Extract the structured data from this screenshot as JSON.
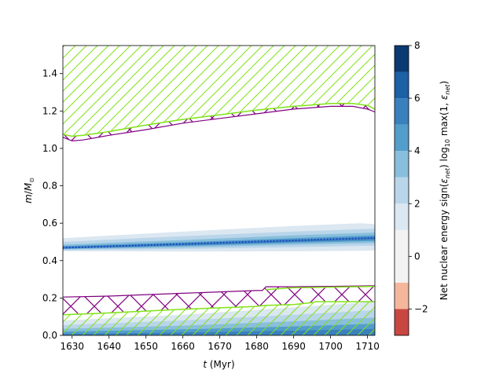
{
  "chart_data": {
    "type": "heatmap",
    "title": "",
    "xlabel_var": "t",
    "xlabel_unit": " (Myr)",
    "ylabel_var": "m",
    "ylabel_sep": "/",
    "ylabel_M": "M",
    "ylabel_sub": "⊙",
    "xlim": [
      1627.5,
      1712
    ],
    "ylim": [
      0.0,
      1.55
    ],
    "x_ticks": [
      1630,
      1640,
      1650,
      1660,
      1670,
      1680,
      1690,
      1700,
      1710
    ],
    "x_tick_labels": [
      "1630",
      "1640",
      "1650",
      "1660",
      "1670",
      "1680",
      "1690",
      "1700",
      "1710"
    ],
    "y_ticks": [
      0.0,
      0.2,
      0.4,
      0.6,
      0.8,
      1.0,
      1.2,
      1.4
    ],
    "y_tick_labels": [
      "0.0",
      "0.2",
      "0.4",
      "0.6",
      "0.8",
      "1.0",
      "1.2",
      "1.4"
    ],
    "colorbar": {
      "label_part1": "Net nuclear energy sign(",
      "label_eps": "ε",
      "label_net": "net",
      "label_part2": ") log",
      "label_10": "10",
      "label_part3": " max(1, ",
      "label_part4": ")",
      "range": [
        -3,
        8
      ],
      "ticks": [
        -2,
        0,
        2,
        4,
        6,
        8
      ],
      "tick_labels": [
        "−2",
        "0",
        "2",
        "4",
        "6",
        "8"
      ],
      "levels": [
        {
          "from": -3,
          "to": -2,
          "color": "#c94741"
        },
        {
          "from": -2,
          "to": -1,
          "color": "#f5b79c"
        },
        {
          "from": -1,
          "to": 1,
          "color": "#f2f2f2"
        },
        {
          "from": 1,
          "to": 2,
          "color": "#dbe7f1"
        },
        {
          "from": 2,
          "to": 3,
          "color": "#b9d5ea"
        },
        {
          "from": 3,
          "to": 4,
          "color": "#89bedc"
        },
        {
          "from": 4,
          "to": 5,
          "color": "#539dcb"
        },
        {
          "from": 5,
          "to": 6,
          "color": "#3a80bd"
        },
        {
          "from": 6,
          "to": 7,
          "color": "#1c60a6"
        },
        {
          "from": 7,
          "to": 8,
          "color": "#0b3a72"
        }
      ]
    },
    "hatch_color": "#80e318",
    "cross_color": "#800080",
    "dot_color": "#1a3cc8",
    "shell_bands": [
      {
        "level": 1,
        "color": "#dbe7f1",
        "x": [
          1627.5,
          1660,
          1690,
          1708,
          1712
        ],
        "lo": [
          0.45,
          0.448,
          0.45,
          0.452,
          0.455
        ],
        "hi": [
          0.52,
          0.555,
          0.585,
          0.6,
          0.595
        ]
      },
      {
        "level": 2,
        "color": "#b9d5ea",
        "x": [
          1627.5,
          1660,
          1690,
          1712
        ],
        "lo": [
          0.455,
          0.462,
          0.472,
          0.48
        ],
        "hi": [
          0.5,
          0.53,
          0.555,
          0.57
        ]
      },
      {
        "level": 3,
        "color": "#89bedc",
        "x": [
          1627.5,
          1660,
          1690,
          1712
        ],
        "lo": [
          0.46,
          0.47,
          0.485,
          0.495
        ],
        "hi": [
          0.485,
          0.51,
          0.535,
          0.55
        ]
      },
      {
        "level": 4,
        "color": "#539dcb",
        "x": [
          1627.5,
          1660,
          1690,
          1712
        ],
        "lo": [
          0.463,
          0.478,
          0.495,
          0.505
        ],
        "hi": [
          0.478,
          0.498,
          0.52,
          0.535
        ]
      },
      {
        "level": 5,
        "color": "#3a80bd",
        "x": [
          1627.5,
          1660,
          1690,
          1712
        ],
        "lo": [
          0.465,
          0.482,
          0.5,
          0.512
        ],
        "hi": [
          0.474,
          0.492,
          0.512,
          0.525
        ]
      }
    ],
    "shell_dots": {
      "x0": 1627.5,
      "x1": 1712,
      "y0": 0.468,
      "y1": 0.522
    },
    "core_bands": [
      {
        "level": 1,
        "color": "#dbe7f1",
        "x": [
          1627.5,
          1660,
          1690,
          1712
        ],
        "hi": [
          0.08,
          0.11,
          0.15,
          0.18
        ]
      },
      {
        "level": 2,
        "color": "#b9d5ea",
        "x": [
          1627.5,
          1660,
          1690,
          1712
        ],
        "hi": [
          0.055,
          0.08,
          0.11,
          0.135
        ]
      },
      {
        "level": 3,
        "color": "#89bedc",
        "x": [
          1627.5,
          1660,
          1690,
          1712
        ],
        "hi": [
          0.035,
          0.052,
          0.075,
          0.095
        ]
      },
      {
        "level": 4,
        "color": "#539dcb",
        "x": [
          1627.5,
          1660,
          1690,
          1712
        ],
        "hi": [
          0.02,
          0.032,
          0.048,
          0.062
        ]
      },
      {
        "level": 5,
        "color": "#3a80bd",
        "x": [
          1627.5,
          1660,
          1690,
          1712
        ],
        "hi": [
          0.008,
          0.015,
          0.025,
          0.035
        ]
      }
    ],
    "envelope_convection": {
      "x": [
        1627.5,
        1630,
        1633,
        1640,
        1650,
        1660,
        1670,
        1680,
        1690,
        1700,
        1706,
        1710,
        1712
      ],
      "bottom": [
        1.075,
        1.065,
        1.07,
        1.09,
        1.125,
        1.155,
        1.18,
        1.205,
        1.225,
        1.24,
        1.24,
        1.23,
        1.21
      ],
      "top": 1.55
    },
    "envelope_overshoot": {
      "x": [
        1627.5,
        1630,
        1633,
        1640,
        1650,
        1660,
        1670,
        1680,
        1690,
        1700,
        1706,
        1710,
        1712
      ],
      "bottom": [
        1.06,
        1.04,
        1.045,
        1.07,
        1.1,
        1.135,
        1.16,
        1.185,
        1.21,
        1.225,
        1.225,
        1.21,
        1.195
      ]
    },
    "core_convection": {
      "x": [
        1627.5,
        1640,
        1660,
        1680,
        1682,
        1690,
        1695,
        1696,
        1700,
        1712
      ],
      "top": [
        0.11,
        0.12,
        0.14,
        0.155,
        0.16,
        0.165,
        0.175,
        0.18,
        0.18,
        0.18
      ],
      "bottom": 0.0
    },
    "core_overshoot": {
      "x": [
        1627.5,
        1640,
        1660,
        1680,
        1681.5,
        1682.5,
        1690,
        1700,
        1712
      ],
      "top": [
        0.205,
        0.21,
        0.225,
        0.24,
        0.24,
        0.26,
        0.26,
        0.262,
        0.265
      ]
    },
    "core_upper_boundary": {
      "x": [
        1682.5,
        1690,
        1700,
        1712
      ],
      "y": [
        0.245,
        0.255,
        0.258,
        0.262
      ]
    }
  }
}
